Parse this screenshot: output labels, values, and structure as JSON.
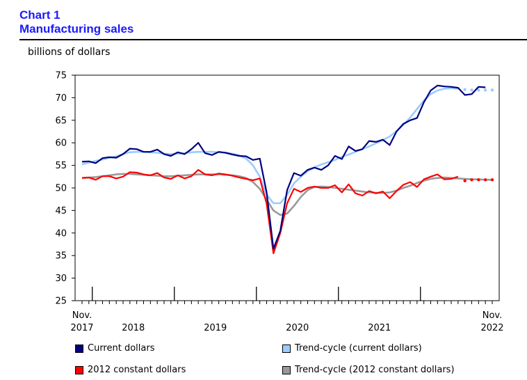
{
  "header": {
    "chart_number": "Chart 1",
    "title": "Manufacturing sales",
    "unit_label": "billions of dollars"
  },
  "legend": [
    {
      "label": "Current dollars",
      "color": "#000080"
    },
    {
      "label": "Trend-cycle (current dollars)",
      "color": "#99ccff"
    },
    {
      "label": "2012 constant dollars",
      "color": "#ff0000"
    },
    {
      "label": "Trend-cycle (2012 constant dollars)",
      "color": "#999999"
    }
  ],
  "chart_data": {
    "type": "line",
    "title": "Manufacturing sales",
    "ylabel": "billions of dollars",
    "xlabel": "",
    "ylim": [
      25,
      75
    ],
    "yticks": [
      25,
      30,
      35,
      40,
      45,
      50,
      55,
      60,
      65,
      70,
      75
    ],
    "x_start": "Nov. 2017",
    "x_end": "Nov. 2022",
    "n_points": 61,
    "x_tick_labels": [
      {
        "top": "Nov.",
        "bottom": "2017",
        "index": 0
      },
      {
        "top": "",
        "bottom": "2018",
        "index": 7.5
      },
      {
        "top": "",
        "bottom": "2019",
        "index": 19.5
      },
      {
        "top": "",
        "bottom": "2020",
        "index": 31.5
      },
      {
        "top": "",
        "bottom": "2021",
        "index": 43.5
      },
      {
        "top": "Nov.",
        "bottom": "2022",
        "index": 60
      }
    ],
    "year_boundaries": [
      2,
      14,
      26,
      38,
      50
    ],
    "series": [
      {
        "name": "Current dollars",
        "color": "#000080",
        "width": 2.2,
        "dotted_last": 0,
        "values": [
          55.8,
          55.9,
          55.5,
          56.6,
          56.8,
          56.7,
          57.5,
          58.7,
          58.6,
          58.0,
          58.0,
          58.5,
          57.5,
          57.1,
          57.9,
          57.5,
          58.6,
          60.0,
          57.7,
          57.3,
          58.0,
          57.8,
          57.4,
          57.1,
          57.0,
          56.2,
          56.5,
          49.0,
          36.5,
          40.5,
          49.5,
          53.3,
          52.7,
          54.0,
          54.5,
          54.0,
          55.0,
          57.1,
          56.4,
          59.2,
          58.2,
          58.6,
          60.4,
          60.2,
          60.7,
          59.5,
          62.5,
          64.2,
          65.0,
          65.5,
          69.0,
          71.6,
          72.7,
          72.5,
          72.4,
          72.2,
          70.6,
          70.8,
          72.4,
          72.3,
          null
        ]
      },
      {
        "name": "Trend-cycle (current dollars)",
        "color": "#99ccff",
        "width": 2.6,
        "dotted_last": 5,
        "values": [
          55.2,
          55.6,
          56.0,
          56.3,
          56.7,
          57.0,
          57.5,
          57.9,
          58.0,
          58.0,
          57.9,
          57.8,
          57.6,
          57.5,
          57.6,
          57.7,
          57.9,
          58.0,
          58.0,
          58.0,
          57.9,
          57.8,
          57.6,
          57.2,
          56.5,
          55.0,
          52.5,
          48.5,
          46.6,
          46.6,
          48.5,
          51.0,
          52.5,
          53.7,
          54.6,
          55.2,
          55.7,
          56.2,
          56.9,
          57.4,
          58.0,
          58.6,
          59.2,
          59.9,
          60.6,
          61.4,
          62.6,
          64.0,
          65.6,
          67.5,
          69.4,
          70.8,
          71.6,
          72.0,
          72.1,
          72.0,
          71.8,
          71.7,
          71.7,
          71.7,
          71.7
        ]
      },
      {
        "name": "2012 constant dollars",
        "color": "#ff0000",
        "width": 2.2,
        "dotted_last": 5,
        "values": [
          52.2,
          52.3,
          51.8,
          52.6,
          52.6,
          52.1,
          52.5,
          53.5,
          53.4,
          53.0,
          52.8,
          53.3,
          52.3,
          52.0,
          52.8,
          52.1,
          52.6,
          54.0,
          53.0,
          52.8,
          53.2,
          53.0,
          52.7,
          52.3,
          52.0,
          51.7,
          52.1,
          46.5,
          35.5,
          40.0,
          46.6,
          49.8,
          49.1,
          50.0,
          50.3,
          50.0,
          50.0,
          50.6,
          49.0,
          50.8,
          48.8,
          48.3,
          49.3,
          48.8,
          49.2,
          47.7,
          49.3,
          50.7,
          51.3,
          50.2,
          51.9,
          52.5,
          53.0,
          51.9,
          52.0,
          52.5,
          51.6,
          51.8,
          51.8,
          51.8,
          51.8
        ]
      },
      {
        "name": "Trend-cycle (2012 constant dollars)",
        "color": "#999999",
        "width": 2.6,
        "dotted_last": 0,
        "values": [
          52.2,
          52.3,
          52.4,
          52.6,
          52.8,
          53.0,
          53.1,
          53.1,
          53.0,
          52.9,
          52.8,
          52.7,
          52.6,
          52.6,
          52.7,
          52.8,
          52.9,
          53.0,
          53.0,
          53.0,
          53.0,
          52.9,
          52.8,
          52.6,
          52.2,
          51.3,
          49.8,
          47.4,
          45.0,
          44.0,
          44.3,
          46.0,
          48.0,
          49.5,
          50.2,
          50.3,
          50.2,
          50.0,
          49.8,
          49.6,
          49.4,
          49.2,
          49.0,
          48.9,
          48.9,
          49.0,
          49.4,
          50.0,
          50.5,
          51.1,
          51.6,
          52.0,
          52.2,
          52.3,
          52.2,
          52.1,
          52.0,
          51.9,
          51.9,
          51.8,
          51.8
        ]
      }
    ]
  }
}
